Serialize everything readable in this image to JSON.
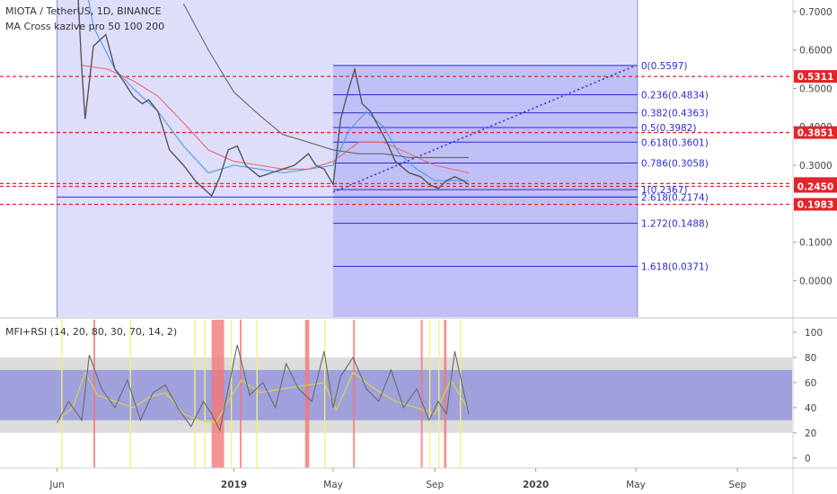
{
  "header": {
    "symbol_line": "MIOTA / TetherUS, 1D, BINANCE",
    "indicator_line": "MA Cross kazive pro 50 100 200"
  },
  "colors": {
    "price_line": "#555555",
    "ma_fast": "#4f9ae8",
    "ma_mid": "#e86a6a",
    "ma_slow": "#666666",
    "fib_lines": "#2b2bd4",
    "fib_region": "#8a8af0",
    "red_levels": "#e3242b",
    "mfi_band_outer": "#d8d8d8",
    "mfi_band_inner": "#8c8cde",
    "mfi_line": "#6a6a6a",
    "rsi_line": "#d8d34a",
    "highlight_red": "#f27777",
    "highlight_yellow": "#f3ee7a"
  },
  "chart_data": [
    {
      "type": "line",
      "name": "price-panel",
      "y_ticks": [
        "0.7000",
        "0.6000",
        "0.5000",
        "0.4000",
        "0.3000",
        "0.2000",
        "0.1000",
        "0.0000"
      ],
      "y_tick_values": [
        0.7,
        0.6,
        0.5,
        0.4,
        0.3,
        0.2,
        0.1,
        0.0
      ],
      "ylim": [
        -0.095,
        0.73
      ],
      "x_labels": [
        "Jun",
        "2019",
        "May",
        "Sep",
        "2020",
        "May",
        "Sep"
      ],
      "x_label_dates": [
        "2018-06-01",
        "2019-01-01",
        "2019-05-01",
        "2019-09-01",
        "2020-01-01",
        "2020-05-01",
        "2020-09-01"
      ],
      "xlim": [
        "2018-03-24",
        "2020-11-06"
      ],
      "price_series": {
        "dates": [
          "2018-06-01",
          "2018-06-10",
          "2018-06-25",
          "2018-07-01",
          "2018-07-05",
          "2018-07-15",
          "2018-07-30",
          "2018-08-10",
          "2018-08-20",
          "2018-09-01",
          "2018-09-12",
          "2018-09-20",
          "2018-10-01",
          "2018-10-15",
          "2018-11-01",
          "2018-11-15",
          "2018-11-25",
          "2018-12-05",
          "2018-12-15",
          "2018-12-25",
          "2019-01-05",
          "2019-01-15",
          "2019-02-01",
          "2019-02-15",
          "2019-03-01",
          "2019-03-15",
          "2019-04-01",
          "2019-04-10",
          "2019-04-20",
          "2019-05-01",
          "2019-05-10",
          "2019-05-20",
          "2019-05-27",
          "2019-06-05",
          "2019-06-15",
          "2019-06-25",
          "2019-07-05",
          "2019-07-15",
          "2019-08-01",
          "2019-08-15",
          "2019-08-25",
          "2019-09-05",
          "2019-09-15",
          "2019-09-25",
          "2019-10-05",
          "2019-10-12"
        ],
        "values": [
          1.0,
          0.9,
          0.8,
          0.55,
          0.42,
          0.61,
          0.64,
          0.55,
          0.52,
          0.48,
          0.46,
          0.47,
          0.44,
          0.34,
          0.3,
          0.26,
          0.24,
          0.22,
          0.27,
          0.34,
          0.35,
          0.3,
          0.27,
          0.28,
          0.29,
          0.3,
          0.33,
          0.3,
          0.29,
          0.25,
          0.42,
          0.5,
          0.55,
          0.46,
          0.44,
          0.4,
          0.36,
          0.31,
          0.28,
          0.27,
          0.25,
          0.24,
          0.26,
          0.27,
          0.26,
          0.25
        ]
      },
      "moving_averages": [
        {
          "dates": [
            "2018-06-25",
            "2018-07-15",
            "2018-08-10",
            "2018-09-01",
            "2018-10-01",
            "2018-11-01",
            "2018-12-01",
            "2019-01-01",
            "2019-02-01",
            "2019-03-01",
            "2019-04-01",
            "2019-05-01",
            "2019-05-20",
            "2019-06-10",
            "2019-07-01",
            "2019-07-20",
            "2019-08-10",
            "2019-09-01",
            "2019-09-20",
            "2019-10-12"
          ],
          "values": [
            0.9,
            0.66,
            0.55,
            0.5,
            0.44,
            0.35,
            0.28,
            0.3,
            0.29,
            0.28,
            0.29,
            0.3,
            0.39,
            0.44,
            0.4,
            0.33,
            0.29,
            0.26,
            0.26,
            0.26
          ]
        },
        {
          "dates": [
            "2018-07-01",
            "2018-08-01",
            "2018-09-01",
            "2018-10-01",
            "2018-11-01",
            "2018-12-01",
            "2019-01-01",
            "2019-02-01",
            "2019-03-01",
            "2019-04-01",
            "2019-05-01",
            "2019-06-01",
            "2019-07-01",
            "2019-08-01",
            "2019-09-01",
            "2019-10-12"
          ],
          "values": [
            0.56,
            0.55,
            0.52,
            0.48,
            0.41,
            0.34,
            0.31,
            0.3,
            0.29,
            0.29,
            0.31,
            0.36,
            0.36,
            0.33,
            0.3,
            0.28
          ]
        },
        {
          "dates": [
            "2018-11-01",
            "2018-12-01",
            "2019-01-01",
            "2019-02-01",
            "2019-03-01",
            "2019-04-01",
            "2019-05-01",
            "2019-06-01",
            "2019-07-01",
            "2019-08-01",
            "2019-09-01",
            "2019-10-12"
          ],
          "values": [
            0.72,
            0.6,
            0.49,
            0.43,
            0.38,
            0.36,
            0.34,
            0.33,
            0.33,
            0.32,
            0.32,
            0.32
          ]
        }
      ],
      "fib_range": {
        "start": "2019-05-01",
        "end": "2020-05-03"
      },
      "fib_levels": [
        {
          "label": "0(0.5597)",
          "value": 0.5597
        },
        {
          "label": "0.236(0.4834)",
          "value": 0.4834
        },
        {
          "label": "0.382(0.4363)",
          "value": 0.4363
        },
        {
          "label": "0.5(0.3982)",
          "value": 0.3982
        },
        {
          "label": "0.618(0.3601)",
          "value": 0.3601
        },
        {
          "label": "0.786(0.3058)",
          "value": 0.3058
        },
        {
          "label": "1(0.2367)",
          "value": 0.2367
        },
        {
          "label": "2.618(0.2174)",
          "value": 0.2174
        },
        {
          "label": "1.272(0.1488)",
          "value": 0.1488
        },
        {
          "label": "1.618(0.0371)",
          "value": 0.0371
        }
      ],
      "fib_trend": {
        "from_date": "2019-05-01",
        "from_value": 0.23,
        "to_date": "2020-05-01",
        "to_value": 0.5597
      },
      "highlight_range": {
        "start": "2018-06-01",
        "end": "2020-05-03"
      },
      "support_line": {
        "value": 0.2174,
        "start": "2018-06-01",
        "end": "2020-05-03"
      },
      "red_levels": [
        {
          "label": "0.5311",
          "value": 0.5311
        },
        {
          "label": "0.3851",
          "value": 0.3851
        },
        {
          "label": "0.2524",
          "value": 0.2524
        },
        {
          "label": "0.2450",
          "value": 0.245
        },
        {
          "label": "0.1983",
          "value": 0.1983
        }
      ],
      "price_badges": [
        {
          "label": "0.5311",
          "value": 0.5311,
          "color": "#e3242b"
        },
        {
          "label": "0.3851",
          "value": 0.3851,
          "color": "#e3242b"
        },
        {
          "label": "0.2524",
          "value": 0.2524,
          "color": "#e3242b"
        },
        {
          "label": "0.2450",
          "value": 0.245,
          "color": "#e3242b"
        },
        {
          "label": "0.1983",
          "value": 0.1983,
          "color": "#e3242b"
        }
      ]
    },
    {
      "type": "line",
      "name": "mfi-rsi-panel",
      "title": "MFI+RSI (14, 20, 80, 30, 70, 14, 2)",
      "y_ticks": [
        "100",
        "80",
        "60",
        "40",
        "20",
        "0"
      ],
      "y_tick_values": [
        100,
        80,
        60,
        40,
        20,
        0
      ],
      "ylim": [
        -8,
        110
      ],
      "bands": {
        "outer": [
          20,
          80
        ],
        "inner": [
          30,
          70
        ]
      },
      "mfi_series": {
        "dates": [
          "2018-06-01",
          "2018-06-15",
          "2018-07-01",
          "2018-07-10",
          "2018-07-25",
          "2018-08-10",
          "2018-08-25",
          "2018-09-10",
          "2018-09-25",
          "2018-10-10",
          "2018-10-25",
          "2018-11-10",
          "2018-11-25",
          "2018-12-05",
          "2018-12-15",
          "2018-12-25",
          "2019-01-05",
          "2019-01-20",
          "2019-02-05",
          "2019-02-20",
          "2019-03-05",
          "2019-03-20",
          "2019-04-05",
          "2019-04-20",
          "2019-05-01",
          "2019-05-10",
          "2019-05-25",
          "2019-06-10",
          "2019-06-25",
          "2019-07-10",
          "2019-07-25",
          "2019-08-10",
          "2019-08-25",
          "2019-09-05",
          "2019-09-15",
          "2019-09-25",
          "2019-10-05",
          "2019-10-12"
        ],
        "values": [
          28,
          45,
          30,
          82,
          55,
          40,
          62,
          30,
          52,
          58,
          40,
          25,
          45,
          35,
          22,
          55,
          90,
          50,
          60,
          40,
          75,
          55,
          45,
          85,
          40,
          65,
          80,
          55,
          45,
          70,
          40,
          55,
          30,
          45,
          35,
          85,
          55,
          35
        ]
      },
      "rsi_series": {
        "dates": [
          "2018-06-01",
          "2018-06-20",
          "2018-07-05",
          "2018-07-20",
          "2018-08-10",
          "2018-09-01",
          "2018-09-20",
          "2018-10-10",
          "2018-11-01",
          "2018-11-20",
          "2018-12-10",
          "2018-12-25",
          "2019-01-10",
          "2019-02-01",
          "2019-03-01",
          "2019-04-01",
          "2019-04-20",
          "2019-05-05",
          "2019-05-25",
          "2019-06-20",
          "2019-07-15",
          "2019-08-10",
          "2019-09-01",
          "2019-09-20",
          "2019-10-12"
        ],
        "values": [
          30,
          40,
          68,
          50,
          45,
          40,
          48,
          52,
          35,
          30,
          28,
          45,
          62,
          52,
          55,
          58,
          60,
          38,
          68,
          55,
          45,
          40,
          35,
          62,
          38
        ]
      },
      "highlights_red": [
        {
          "start": "2018-07-15",
          "end": "2018-07-17"
        },
        {
          "start": "2018-12-05",
          "end": "2018-12-20"
        },
        {
          "start": "2019-01-08",
          "end": "2019-01-10"
        },
        {
          "start": "2019-03-28",
          "end": "2019-04-02"
        },
        {
          "start": "2019-05-25",
          "end": "2019-05-27"
        },
        {
          "start": "2019-08-15",
          "end": "2019-08-17"
        },
        {
          "start": "2019-09-12",
          "end": "2019-09-15"
        }
      ],
      "highlights_yellow": [
        {
          "start": "2018-06-06",
          "end": "2018-06-07"
        },
        {
          "start": "2018-08-28",
          "end": "2018-08-29"
        },
        {
          "start": "2018-11-14",
          "end": "2018-11-15"
        },
        {
          "start": "2018-11-26",
          "end": "2018-11-27"
        },
        {
          "start": "2018-12-28",
          "end": "2018-12-29"
        },
        {
          "start": "2019-01-28",
          "end": "2019-01-29"
        },
        {
          "start": "2019-04-20",
          "end": "2019-04-21"
        },
        {
          "start": "2019-08-25",
          "end": "2019-08-26"
        },
        {
          "start": "2019-09-05",
          "end": "2019-09-06"
        },
        {
          "start": "2019-10-01",
          "end": "2019-10-02"
        }
      ]
    }
  ]
}
